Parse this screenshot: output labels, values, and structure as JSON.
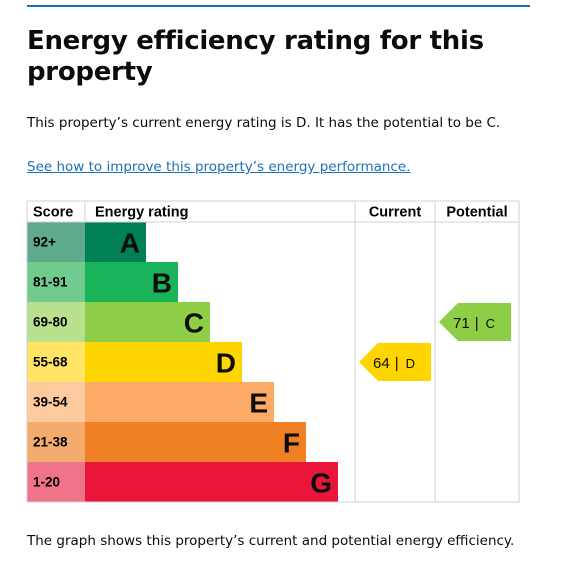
{
  "header": {
    "title": "Energy efficiency rating for this property"
  },
  "summary": "This property’s current energy rating is D. It has the potential to be C.",
  "link": "See how to improve this property’s energy performance.",
  "table": {
    "headers": [
      "Score",
      "Energy rating",
      "Current",
      "Potential"
    ],
    "bands": [
      {
        "score": "92+",
        "letter": "A",
        "color": "#008054",
        "score_color": "#5fa98d"
      },
      {
        "score": "81-91",
        "letter": "B",
        "color": "#19b459",
        "score_color": "#72cb8e"
      },
      {
        "score": "69-80",
        "letter": "C",
        "color": "#8dce46",
        "score_color": "#b8e08d"
      },
      {
        "score": "55-68",
        "letter": "D",
        "color": "#ffd500",
        "score_color": "#ffe466"
      },
      {
        "score": "39-54",
        "letter": "E",
        "color": "#fcaa65",
        "score_color": "#fdcb9e"
      },
      {
        "score": "21-38",
        "letter": "F",
        "color": "#ef8023",
        "score_color": "#f4ab6e"
      },
      {
        "score": "1-20",
        "letter": "G",
        "color": "#e9153b",
        "score_color": "#f1738a"
      }
    ]
  },
  "current": {
    "value": 64,
    "separator": "|",
    "letter": "D"
  },
  "potential": {
    "value": 71,
    "separator": "|",
    "letter": "C"
  },
  "footer": "The graph shows this property’s current and potential energy efficiency."
}
